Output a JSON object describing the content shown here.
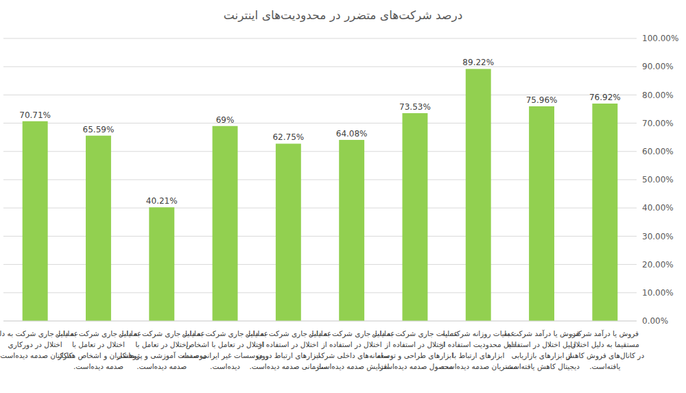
{
  "chart_data": {
    "type": "bar",
    "title": "درصد شرکت‌های متضرر در محدودیت‌های اینترنت",
    "categories": [
      "عملیات جاری شرکت به دلیل اختلال در دورکاری کارکنان صدمه دیده‌است.",
      "عملیات جاری شرکت به دلیل اختلال در تعامل با پیمانکاران و اشخاص همکار صدمه دیده‌است.",
      "عملیات جاری شرکت به دلیل اختلال در تعامل با موسسات آموزشی و پژوهشی صدمه دیده‌است.",
      "عملیات جاری شرکت به دلیل اختلال در تعامل با اشخاص و موسسات غیر ایرانی صدمه دیده‌است.",
      "عملیات جاری شرکت به دلیل اختلال در استفاده از ابزارهای ارتباط درون سازمانی صدمه دیده‌است.",
      "عملیات جاری شرکت به دلیل اختلال در استفاده از سامانه‌های داخلی شرکت افزایش صدمه دیده‌است.",
      "عملیات جاری شرکت به دلیل اختلال در استفاده از ابزارهای طراحی و توسعه محصول صدمه دیده‌است.",
      "عملیات روزانه شرکت به دلیل محدودیت استفاده از ابزارهای ارتباط با مشتریان صدمه دیده‌است.",
      "فروش یا درآمد شرکت به دلیل اختلال در استفاده از ابزارهای بازاریابی دیجیتال کاهش یافته‌است.",
      "فروش یا درآمد شرکت مستقیما به دلیل اختلال در کانال‌های فروش کاهش یافته‌است."
    ],
    "values": [
      70.71,
      65.59,
      40.21,
      69,
      62.75,
      64.08,
      73.53,
      89.22,
      75.96,
      76.92
    ],
    "value_labels": [
      "70.71%",
      "65.59%",
      "40.21%",
      "69%",
      "62.75%",
      "64.08%",
      "73.53%",
      "89.22%",
      "75.96%",
      "76.92%"
    ],
    "data_labels": true,
    "color": "#92d050",
    "ylim": [
      0,
      100
    ],
    "yticks": [
      {
        "value": 0,
        "label": "0.00%"
      },
      {
        "value": 10,
        "label": "10.00%"
      },
      {
        "value": 20,
        "label": "20.00%"
      },
      {
        "value": 30,
        "label": "30.00%"
      },
      {
        "value": 40,
        "label": "40.00%"
      },
      {
        "value": 50,
        "label": "50.00%"
      },
      {
        "value": 60,
        "label": "60.00%"
      },
      {
        "value": 70,
        "label": "70.00%"
      },
      {
        "value": 80,
        "label": "80.00%"
      },
      {
        "value": 90,
        "label": "90.00%"
      },
      {
        "value": 100,
        "label": "100.00%"
      }
    ],
    "grid": true
  }
}
